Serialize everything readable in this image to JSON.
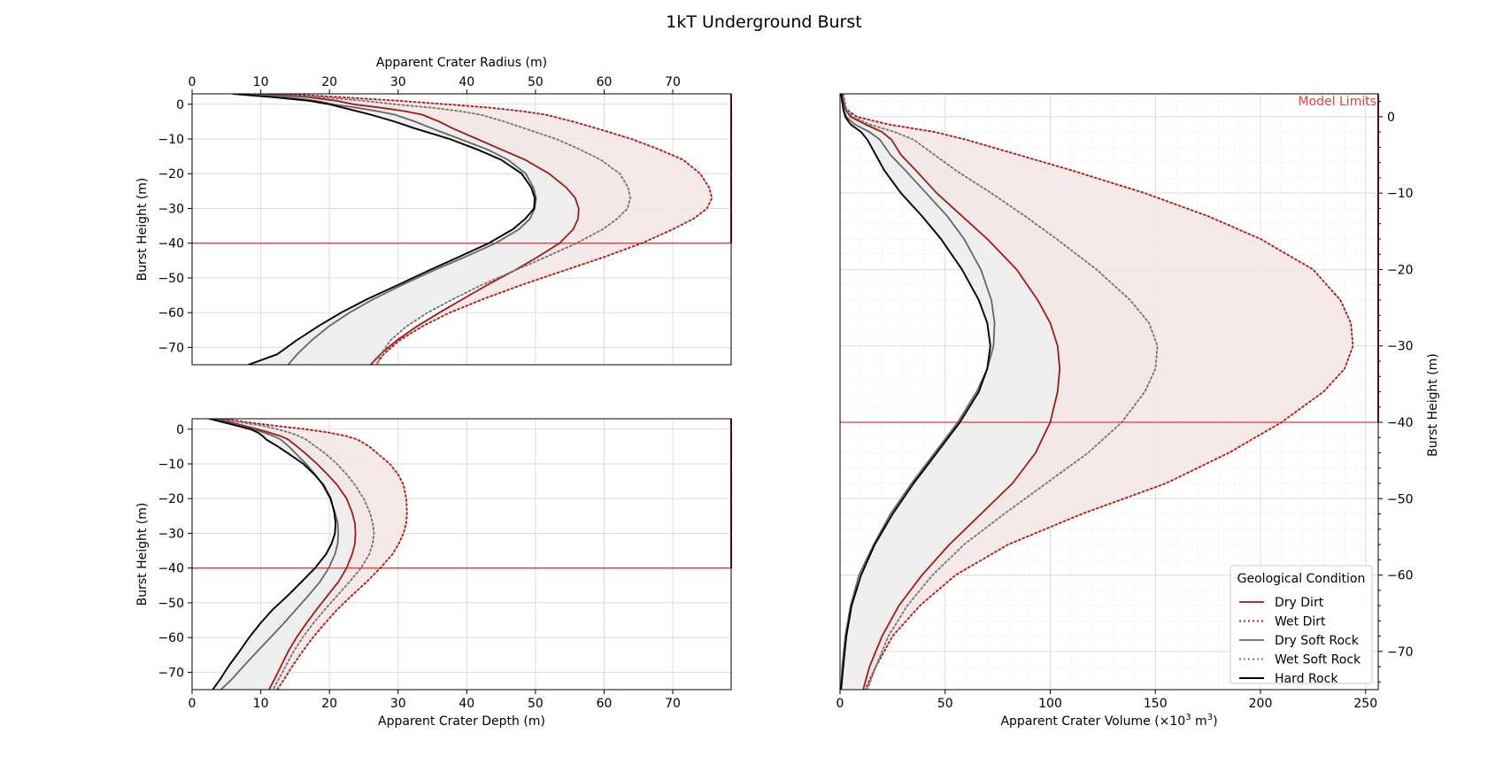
{
  "figure": {
    "title": "1kT Underground Burst",
    "annotation": "Model Limits",
    "limit_line_height": -40,
    "colors": {
      "dry_dirt": "#9b1c1c",
      "wet_dirt": "#b01e1e",
      "dry_soft_rock": "#666666",
      "wet_soft_rock": "#777777",
      "hard_rock": "#000000",
      "limit_line": "#e03c3c",
      "fill_gray": "#eeeeee",
      "fill_pink": "#f4e5e5",
      "fill_mixed": "#e8dcdc",
      "grid": "#dcdcdc"
    }
  },
  "legend": {
    "title": "Geological Condition",
    "entries": [
      "Dry Dirt",
      "Wet Dirt",
      "Dry Soft Rock",
      "Wet Soft Rock",
      "Hard Rock"
    ]
  },
  "chart_data": [
    {
      "type": "line",
      "panel": "radius",
      "title": "",
      "xlabel": "Apparent Crater Radius (m)",
      "xlabel_position": "top",
      "ylabel": "Burst Height (m)",
      "xlim": [
        0,
        78.5
      ],
      "ylim": [
        -75,
        3
      ],
      "xticks": [
        0,
        10,
        20,
        30,
        40,
        50,
        60,
        70
      ],
      "yticks": [
        0,
        -10,
        -20,
        -30,
        -40,
        -50,
        -60,
        -70
      ],
      "grid": true,
      "y": [
        3,
        2,
        1,
        0,
        -1,
        -2,
        -3,
        -5,
        -7,
        -10,
        -13,
        -16,
        -20,
        -24,
        -27,
        -30,
        -33,
        -36,
        -40,
        -44,
        -48,
        -52,
        -56,
        -60,
        -64,
        -68,
        -72,
        -75
      ],
      "series": [
        {
          "name": "Dry Dirt",
          "style": "solid",
          "x": [
            11,
            17,
            21,
            23.5,
            27.5,
            31,
            33.5,
            36,
            38,
            41.5,
            45,
            48.5,
            52,
            54.5,
            55.8,
            56.3,
            56.2,
            55.5,
            53.5,
            50.3,
            46.8,
            43,
            39.5,
            36,
            32.7,
            29.8,
            27.4,
            26
          ]
        },
        {
          "name": "Wet Dirt",
          "style": "dotted",
          "x": [
            13,
            22,
            30,
            37,
            43.5,
            48,
            51.5,
            55.5,
            59,
            64,
            68,
            71.5,
            74,
            75.3,
            75.7,
            75,
            73,
            70,
            65.5,
            60,
            54,
            48,
            42.5,
            37.5,
            33.5,
            30.2,
            27.9,
            26.8
          ]
        },
        {
          "name": "Dry Soft Rock",
          "style": "solid",
          "x": [
            9,
            14,
            18,
            20.5,
            24,
            27,
            29.5,
            32.5,
            35,
            39,
            43,
            46,
            48.6,
            49.7,
            50.1,
            49.9,
            49.2,
            47.6,
            44.2,
            39.7,
            35,
            30.6,
            26.5,
            22.9,
            19.9,
            17.4,
            15.3,
            14
          ]
        },
        {
          "name": "Wet Soft Rock",
          "style": "dotted",
          "x": [
            12,
            19,
            25,
            29.5,
            35,
            39,
            42,
            45.5,
            48.5,
            53,
            56.5,
            59.5,
            62.3,
            63.5,
            63.8,
            63.4,
            61.9,
            59.8,
            56,
            51.5,
            46.8,
            42.2,
            38.1,
            34.3,
            31.2,
            28.9,
            27.5,
            26.9
          ]
        },
        {
          "name": "Hard Rock",
          "style": "solid",
          "x": [
            6,
            12,
            17,
            20,
            22,
            24,
            26,
            29.5,
            32.5,
            37.5,
            41.5,
            45,
            48,
            49.4,
            49.9,
            49.8,
            48.5,
            46.7,
            43.2,
            38.8,
            34.3,
            30,
            25.6,
            21.7,
            18.3,
            15.2,
            12.4,
            8.2
          ]
        }
      ]
    },
    {
      "type": "line",
      "panel": "depth",
      "title": "",
      "xlabel": "Apparent Crater Depth (m)",
      "ylabel": "Burst Height (m)",
      "xlim": [
        0,
        78.5
      ],
      "ylim": [
        -75,
        3
      ],
      "xticks": [
        0,
        10,
        20,
        30,
        40,
        50,
        60,
        70
      ],
      "yticks": [
        0,
        -10,
        -20,
        -30,
        -40,
        -50,
        -60,
        -70
      ],
      "grid": true,
      "y": [
        3,
        2,
        1,
        0,
        -1,
        -2,
        -3,
        -5,
        -7,
        -10,
        -13,
        -16,
        -20,
        -24,
        -27,
        -30,
        -33,
        -36,
        -40,
        -44,
        -48,
        -52,
        -56,
        -60,
        -64,
        -68,
        -72,
        -75
      ],
      "series": [
        {
          "name": "Dry Dirt",
          "style": "solid",
          "x": [
            3.5,
            5.5,
            7.5,
            9.5,
            11.3,
            12.9,
            14,
            15.3,
            16.5,
            18.2,
            19.7,
            21.1,
            22.5,
            23.3,
            23.7,
            23.8,
            23.7,
            23.3,
            22.5,
            21.3,
            19.7,
            18.1,
            16.6,
            15.2,
            14,
            13,
            12,
            11.2
          ]
        },
        {
          "name": "Wet Dirt",
          "style": "dotted",
          "x": [
            4.5,
            8,
            12,
            16.5,
            20,
            22.5,
            24.1,
            25.8,
            27,
            28.8,
            30,
            30.8,
            31.2,
            31.3,
            31.2,
            30.8,
            30.1,
            29.2,
            27.4,
            25.4,
            23.2,
            21.1,
            19.3,
            17.6,
            16.1,
            14.7,
            13.4,
            12.4
          ]
        },
        {
          "name": "Dry Soft Rock",
          "style": "solid",
          "x": [
            3,
            4.9,
            6.9,
            8.9,
            10.5,
            11.9,
            12.9,
            14.1,
            15.1,
            16.6,
            17.9,
            19,
            20.1,
            20.8,
            21.2,
            21.3,
            21.2,
            20.8,
            19.9,
            18.6,
            16.9,
            15.1,
            13.3,
            11.4,
            9.5,
            7.6,
            5.8,
            4.2
          ]
        },
        {
          "name": "Wet Soft Rock",
          "style": "dotted",
          "x": [
            4,
            7,
            10.2,
            12.4,
            14.2,
            15.6,
            16.6,
            18,
            19.4,
            21.1,
            22.5,
            23.7,
            25,
            25.9,
            26.3,
            26.5,
            26.3,
            25.8,
            24.6,
            22.9,
            21.1,
            19.3,
            17.6,
            16.1,
            14.8,
            13.7,
            12.6,
            11.8
          ]
        },
        {
          "name": "Hard Rock",
          "style": "solid",
          "x": [
            2.5,
            4.5,
            6.5,
            8.5,
            9.6,
            10.3,
            10.8,
            12.5,
            14,
            16.2,
            17.8,
            19.1,
            20.2,
            20.7,
            20.9,
            20.8,
            20.3,
            19.5,
            17.9,
            15.9,
            13.9,
            11.7,
            9.9,
            8.3,
            6.9,
            5.4,
            4.1,
            3
          ]
        }
      ]
    },
    {
      "type": "line",
      "panel": "volume",
      "title": "",
      "xlabel": "Apparent Crater Volume (×10",
      "xlabel_sup": "3",
      "xlabel_mid": " m",
      "xlabel_sup2": "3",
      "xlabel_end": ")",
      "ylabel": "Burst Height (m)",
      "ylabel_position": "right",
      "xlim": [
        0,
        256
      ],
      "ylim": [
        -75,
        3
      ],
      "xticks": [
        0,
        50,
        100,
        150,
        200,
        250
      ],
      "yticks": [
        0,
        -10,
        -20,
        -30,
        -40,
        -50,
        -60,
        -70
      ],
      "grid": true,
      "y": [
        3,
        1,
        0,
        -1,
        -2,
        -3,
        -5,
        -7,
        -10,
        -13,
        -16,
        -20,
        -24,
        -27,
        -30,
        -33,
        -36,
        -40,
        -44,
        -48,
        -52,
        -56,
        -60,
        -64,
        -68,
        -72,
        -75
      ],
      "series": [
        {
          "name": "Dry Dirt",
          "style": "solid",
          "x": [
            1,
            2.5,
            5,
            12,
            20,
            24.5,
            29,
            36,
            46,
            58,
            70,
            84,
            94,
            100,
            103.5,
            104.5,
            103.5,
            100,
            93,
            82,
            67,
            52,
            39,
            28,
            20,
            14,
            11
          ]
        },
        {
          "name": "Wet Dirt",
          "style": "dotted",
          "x": [
            1.5,
            3,
            8,
            23,
            45,
            60,
            85,
            110,
            145,
            175,
            200,
            225,
            238,
            243,
            244,
            240,
            230,
            210,
            185,
            155,
            115,
            80,
            55,
            38,
            25,
            17,
            12
          ]
        },
        {
          "name": "Dry Soft Rock",
          "style": "solid",
          "x": [
            1,
            1.5,
            3,
            7,
            14,
            19,
            24,
            31,
            41,
            51,
            59,
            67,
            72,
            73.5,
            73,
            70,
            65,
            56,
            45,
            34,
            24,
            16,
            9,
            5,
            2.5,
            1,
            0.5
          ]
        },
        {
          "name": "Wet Soft Rock",
          "style": "dotted",
          "x": [
            1.2,
            3,
            6,
            14,
            26,
            35,
            45,
            55,
            72,
            88,
            103,
            122,
            138,
            147,
            151,
            150,
            145,
            134,
            118,
            98,
            78,
            59,
            44,
            32,
            23,
            17,
            13
          ]
        },
        {
          "name": "Hard Rock",
          "style": "solid",
          "x": [
            0.5,
            1.5,
            2.5,
            5,
            10,
            13,
            17,
            21,
            29,
            39,
            48,
            58,
            66,
            70,
            71.5,
            70,
            66,
            57,
            46,
            35,
            25,
            16.5,
            10,
            5.5,
            3,
            1.5,
            0.5
          ]
        }
      ]
    }
  ]
}
